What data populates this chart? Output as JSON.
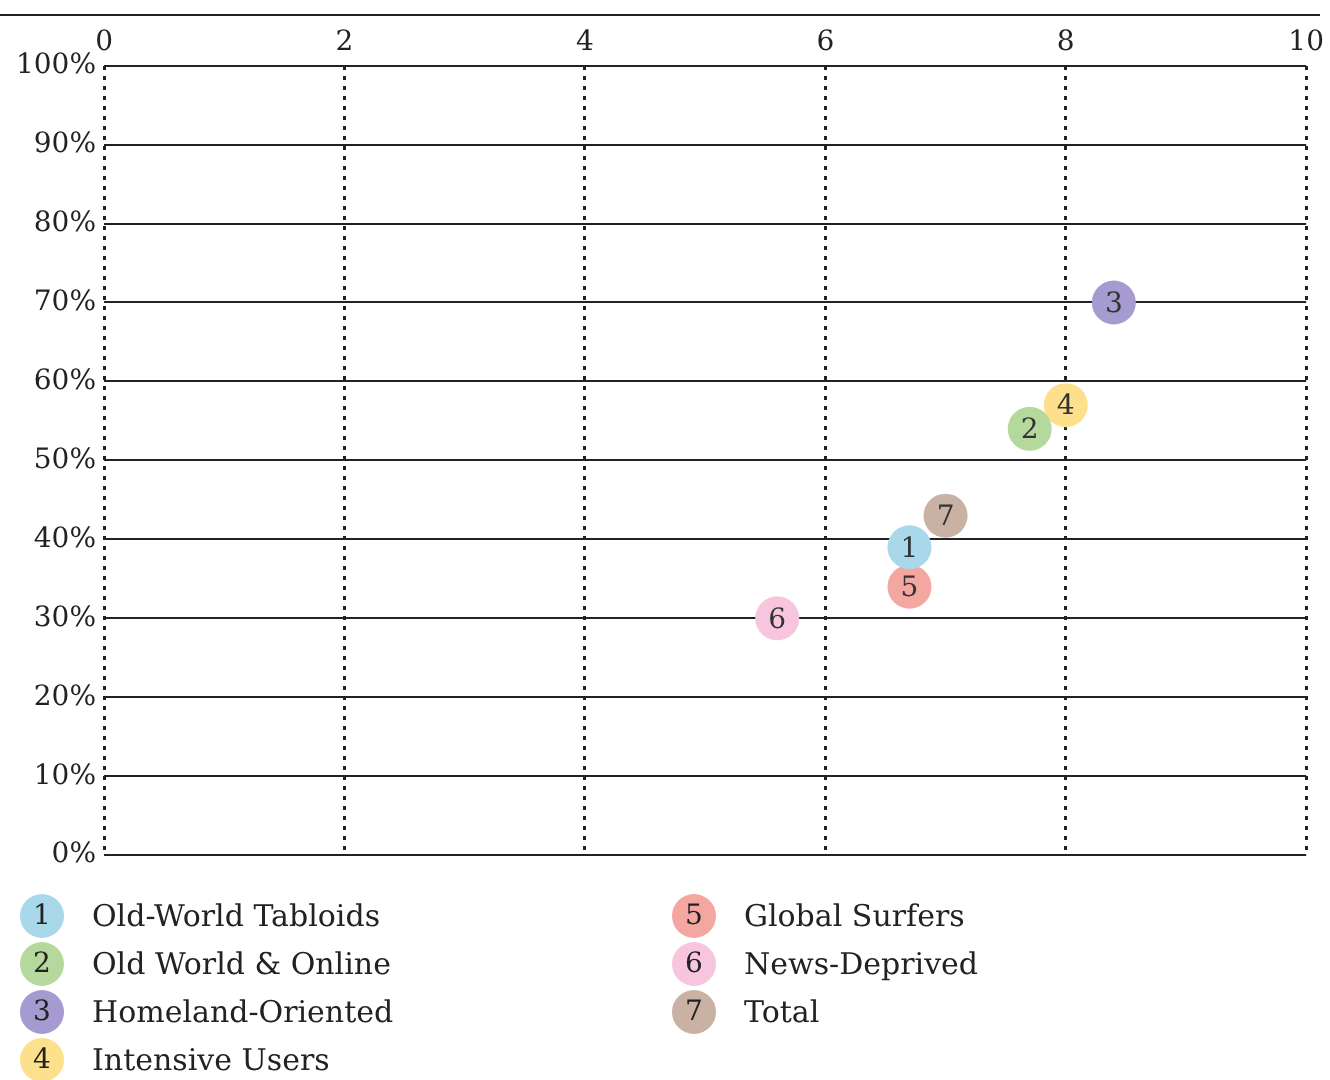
{
  "chart_data": {
    "type": "scatter",
    "xlim": [
      0,
      10
    ],
    "xticks": [
      0,
      2,
      4,
      6,
      8,
      10
    ],
    "ylim": [
      0,
      100
    ],
    "yticks": [
      {
        "value": 0,
        "label": "0%"
      },
      {
        "value": 10,
        "label": "10%"
      },
      {
        "value": 20,
        "label": "20%"
      },
      {
        "value": 30,
        "label": "30%"
      },
      {
        "value": 40,
        "label": "40%"
      },
      {
        "value": 50,
        "label": "50%"
      },
      {
        "value": 60,
        "label": "60%"
      },
      {
        "value": 70,
        "label": "70%"
      },
      {
        "value": 80,
        "label": "80%"
      },
      {
        "value": 90,
        "label": "90%"
      },
      {
        "value": 100,
        "label": "100%"
      }
    ],
    "grid": true,
    "legend": "bottom",
    "marker": "circle",
    "series": [
      {
        "name": "Old-World Tabloids",
        "color": "#a8d8ea",
        "x": [
          6.7
        ],
        "values": [
          39
        ]
      },
      {
        "name": "Old World & Online",
        "color": "#b5d99c",
        "x": [
          7.7
        ],
        "values": [
          54
        ]
      },
      {
        "name": "Homeland-Oriented",
        "color": "#a59bd0",
        "x": [
          8.4
        ],
        "values": [
          70
        ]
      },
      {
        "name": "Intensive Users",
        "color": "#fde08b",
        "x": [
          8.0
        ],
        "values": [
          57
        ]
      },
      {
        "name": "Global Surfers",
        "color": "#f4a6a0",
        "x": [
          6.7
        ],
        "values": [
          34
        ]
      },
      {
        "name": "News-Deprived",
        "color": "#f7c6de",
        "x": [
          5.6
        ],
        "values": [
          30
        ]
      },
      {
        "name": "Total",
        "color": "#c9b1a3",
        "x": [
          7.0
        ],
        "values": [
          43
        ]
      }
    ],
    "annotations": [
      {
        "text": "1",
        "x": 6.7,
        "y": 39
      },
      {
        "text": "2",
        "x": 7.7,
        "y": 54
      },
      {
        "text": "3",
        "x": 8.4,
        "y": 70
      },
      {
        "text": "4",
        "x": 8.0,
        "y": 57
      },
      {
        "text": "5",
        "x": 6.7,
        "y": 34
      },
      {
        "text": "6",
        "x": 5.6,
        "y": 30
      },
      {
        "text": "7",
        "x": 7.0,
        "y": 43
      }
    ]
  }
}
